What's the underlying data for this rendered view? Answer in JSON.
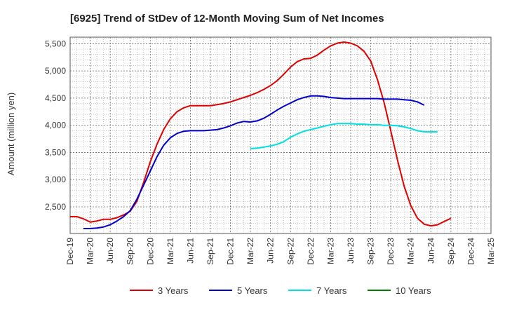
{
  "chart_data": {
    "type": "line",
    "title": "[6925]  Trend of StDev of 12-Month Moving Sum of Net Incomes",
    "xlabel": "",
    "ylabel": "Amount (million yen)",
    "x_ticks": [
      "Dec-19",
      "Mar-20",
      "Jun-20",
      "Sep-20",
      "Dec-20",
      "Mar-21",
      "Jun-21",
      "Sep-21",
      "Dec-21",
      "Mar-22",
      "Jun-22",
      "Sep-22",
      "Dec-22",
      "Mar-23",
      "Jun-23",
      "Sep-23",
      "Dec-23",
      "Mar-24",
      "Jun-24",
      "Sep-24",
      "Dec-24",
      "Mar-25"
    ],
    "y_ticks": [
      2500,
      3000,
      3500,
      4000,
      4500,
      5000,
      5500
    ],
    "y_tick_labels": [
      "2,500",
      "3,000",
      "3,500",
      "4,000",
      "4,500",
      "5,000",
      "5,500"
    ],
    "xlim": [
      0,
      63
    ],
    "ylim": [
      2010,
      5620
    ],
    "grid": true,
    "legend_position": "bottom",
    "series": [
      {
        "name": "3 Years",
        "color": "#e00000",
        "start_index": 0,
        "values": [
          2320,
          2320,
          2280,
          2220,
          2240,
          2270,
          2270,
          2300,
          2350,
          2420,
          2600,
          2950,
          3330,
          3650,
          3920,
          4120,
          4250,
          4320,
          4360,
          4360,
          4360,
          4360,
          4380,
          4400,
          4430,
          4470,
          4510,
          4550,
          4600,
          4660,
          4730,
          4820,
          4940,
          5070,
          5170,
          5220,
          5230,
          5290,
          5380,
          5460,
          5510,
          5530,
          5510,
          5460,
          5360,
          5180,
          4840,
          4420,
          3900,
          3360,
          2880,
          2520,
          2290,
          2180,
          2150,
          2170,
          2230,
          2290
        ]
      },
      {
        "name": "5 Years",
        "color": "#0000cc",
        "start_index": 2,
        "values": [
          2100,
          2100,
          2110,
          2130,
          2170,
          2240,
          2320,
          2430,
          2640,
          2900,
          3160,
          3420,
          3630,
          3770,
          3850,
          3890,
          3900,
          3900,
          3900,
          3910,
          3920,
          3950,
          3990,
          4040,
          4070,
          4060,
          4080,
          4130,
          4200,
          4280,
          4350,
          4410,
          4470,
          4510,
          4540,
          4540,
          4530,
          4510,
          4500,
          4490,
          4490,
          4490,
          4490,
          4490,
          4490,
          4480,
          4480,
          4480,
          4470,
          4460,
          4430,
          4370
        ]
      },
      {
        "name": "7 Years",
        "color": "#00e0e0",
        "start_index": 27,
        "values": [
          3570,
          3580,
          3600,
          3620,
          3650,
          3700,
          3780,
          3840,
          3890,
          3920,
          3950,
          3980,
          4010,
          4030,
          4030,
          4030,
          4020,
          4020,
          4010,
          4010,
          4000,
          4000,
          3990,
          3970,
          3940,
          3900,
          3880,
          3880,
          3880
        ]
      },
      {
        "name": "10 Years",
        "color": "#008000",
        "start_index": 0,
        "values": []
      }
    ]
  }
}
